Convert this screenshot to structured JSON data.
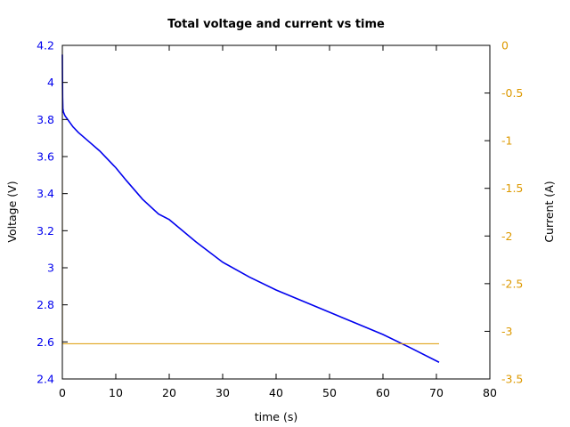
{
  "chart_data": {
    "type": "line",
    "title": "Total voltage and current vs time",
    "xlabel": "time (s)",
    "ylabel": "Voltage (V)",
    "y2label": "Current (A)",
    "xlim": [
      0,
      80
    ],
    "ylim": [
      2.4,
      4.2
    ],
    "y2lim": [
      -3.5,
      0
    ],
    "xticks": [
      "0",
      "10",
      "20",
      "30",
      "40",
      "50",
      "60",
      "70",
      "80"
    ],
    "yticks": [
      "2.4",
      "2.6",
      "2.8",
      "3",
      "3.2",
      "3.4",
      "3.6",
      "3.8",
      "4",
      "4.2"
    ],
    "y2ticks": [
      "0",
      "-0.5",
      "-1",
      "-1.5",
      "-2",
      "-2.5",
      "-3",
      "-3.5"
    ],
    "grid": false,
    "colors": {
      "voltage": "#0000ee",
      "current": "#dd9900",
      "axes": "#000000"
    },
    "series": [
      {
        "axis": "left",
        "x": [
          0,
          0.02,
          0.05,
          0.1,
          0.2,
          0.5,
          1,
          2,
          3,
          5,
          7,
          10,
          12,
          15,
          18,
          20,
          25,
          30,
          35,
          40,
          45,
          50,
          55,
          60,
          65,
          70.5
        ],
        "y": [
          4.15,
          4.05,
          3.92,
          3.86,
          3.84,
          3.82,
          3.8,
          3.76,
          3.73,
          3.68,
          3.63,
          3.54,
          3.47,
          3.37,
          3.29,
          3.26,
          3.14,
          3.03,
          2.95,
          2.88,
          2.82,
          2.76,
          2.7,
          2.64,
          2.57,
          2.49
        ]
      },
      {
        "axis": "right",
        "x": [
          0,
          0.02,
          70.5
        ],
        "y": [
          0,
          -3.13,
          -3.13
        ]
      }
    ]
  }
}
